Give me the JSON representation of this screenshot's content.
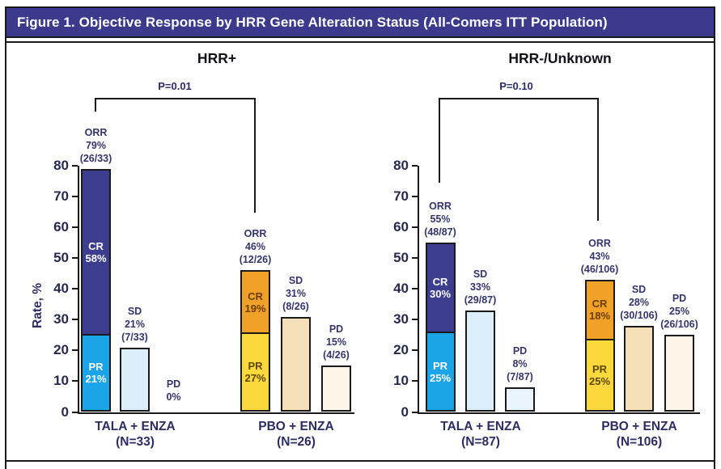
{
  "figure_title": "Figure 1. Objective Response by HRR Gene Alteration Status (All-Comers ITT Population)",
  "colors": {
    "title_bar_bg": "#3b3a8c",
    "title_bar_text": "#ffffff",
    "navy_text": "#2b2d63",
    "line_black": "#1a1a1a",
    "tala_cr": "#3d3d90",
    "tala_pr": "#1ba4e8",
    "tala_sd": "#ddeefb",
    "tala_pd": "#eaf4fc",
    "pbo_cr": "#f0a127",
    "pbo_pr": "#fbd93d",
    "pbo_sd": "#f4dfb9",
    "pbo_pd": "#fdf5e7"
  },
  "chart_data": {
    "type": "bar",
    "ylabel": "Rate, %",
    "ylim": [
      0,
      80
    ],
    "yticks": [
      0,
      10,
      20,
      30,
      40,
      50,
      60,
      70,
      80
    ],
    "grid": "off",
    "panels": [
      {
        "title": "HRR+",
        "p_value": "P=0.01",
        "groups": [
          {
            "name": "TALA + ENZA",
            "n_label": "(N=33)",
            "bars": [
              {
                "type": "stacked",
                "total": 79,
                "annotation": [
                  "ORR",
                  "79%",
                  "(26/33)"
                ],
                "segments": [
                  {
                    "label": "PR",
                    "pct": 21,
                    "color": "#1ba4e8",
                    "text_color": "#ffffff"
                  },
                  {
                    "label": "CR",
                    "pct": 58,
                    "color": "#3d3d90",
                    "text_color": "#ffffff"
                  }
                ]
              },
              {
                "type": "single",
                "label": "SD",
                "pct": 21,
                "annotation": [
                  "SD",
                  "21%",
                  "(7/33)"
                ],
                "color": "#ddeefb"
              },
              {
                "type": "single",
                "label": "PD",
                "pct": 0,
                "annotation": [
                  "PD",
                  "0%"
                ],
                "color": "#eaf4fc"
              }
            ]
          },
          {
            "name": "PBO + ENZA",
            "n_label": "(N=26)",
            "bars": [
              {
                "type": "stacked",
                "total": 46,
                "annotation": [
                  "ORR",
                  "46%",
                  "(12/26)"
                ],
                "segments": [
                  {
                    "label": "PR",
                    "pct": 27,
                    "color": "#fbd93d",
                    "text_color": "#5e4708"
                  },
                  {
                    "label": "CR",
                    "pct": 19,
                    "color": "#f0a127",
                    "text_color": "#6e3d0a"
                  }
                ]
              },
              {
                "type": "single",
                "label": "SD",
                "pct": 31,
                "annotation": [
                  "SD",
                  "31%",
                  "(8/26)"
                ],
                "color": "#f4dfb9"
              },
              {
                "type": "single",
                "label": "PD",
                "pct": 15,
                "annotation": [
                  "PD",
                  "15%",
                  "(4/26)"
                ],
                "color": "#fdf5e7"
              }
            ]
          }
        ]
      },
      {
        "title": "HRR-/Unknown",
        "p_value": "P=0.10",
        "groups": [
          {
            "name": "TALA + ENZA",
            "n_label": "(N=87)",
            "bars": [
              {
                "type": "stacked",
                "total": 55,
                "annotation": [
                  "ORR",
                  "55%",
                  "(48/87)"
                ],
                "segments": [
                  {
                    "label": "PR",
                    "pct": 25,
                    "color": "#1ba4e8",
                    "text_color": "#ffffff"
                  },
                  {
                    "label": "CR",
                    "pct": 30,
                    "color": "#3d3d90",
                    "text_color": "#ffffff"
                  }
                ]
              },
              {
                "type": "single",
                "label": "SD",
                "pct": 33,
                "annotation": [
                  "SD",
                  "33%",
                  "(29/87)"
                ],
                "color": "#ddeefb"
              },
              {
                "type": "single",
                "label": "PD",
                "pct": 8,
                "annotation": [
                  "PD",
                  "8%",
                  "(7/87)"
                ],
                "color": "#eaf4fc"
              }
            ]
          },
          {
            "name": "PBO + ENZA",
            "n_label": "(N=106)",
            "bars": [
              {
                "type": "stacked",
                "total": 43,
                "annotation": [
                  "ORR",
                  "43%",
                  "(46/106)"
                ],
                "segments": [
                  {
                    "label": "PR",
                    "pct": 25,
                    "color": "#fbd93d",
                    "text_color": "#5e4708"
                  },
                  {
                    "label": "CR",
                    "pct": 18,
                    "color": "#f0a127",
                    "text_color": "#6e3d0a"
                  }
                ]
              },
              {
                "type": "single",
                "label": "SD",
                "pct": 28,
                "annotation": [
                  "SD",
                  "28%",
                  "(30/106)"
                ],
                "color": "#f4dfb9"
              },
              {
                "type": "single",
                "label": "PD",
                "pct": 25,
                "annotation": [
                  "PD",
                  "25%",
                  "(26/106)"
                ],
                "color": "#fdf5e7"
              }
            ]
          }
        ]
      }
    ]
  }
}
